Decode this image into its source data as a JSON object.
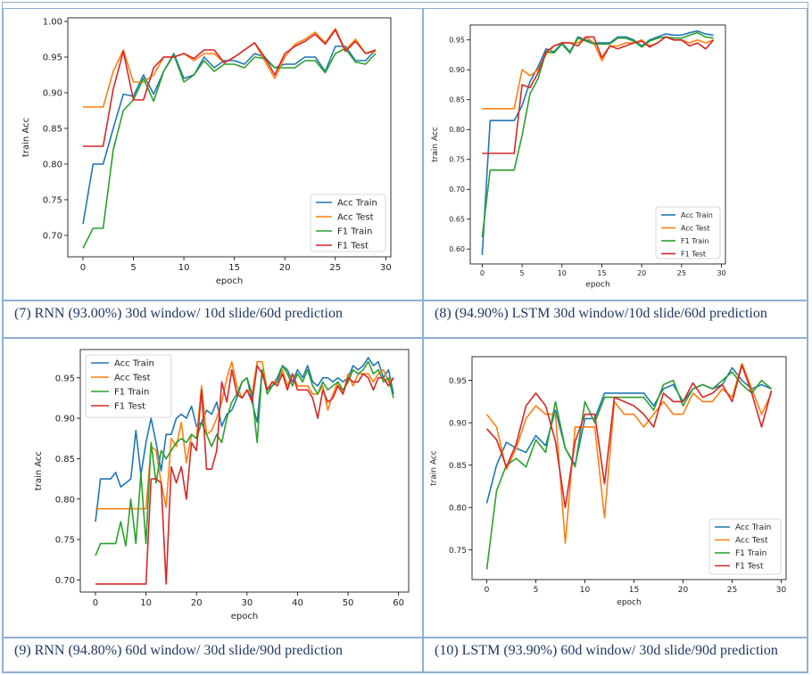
{
  "captions": [
    "(7) RNN (93.00%) 30d window/ 10d slide/60d prediction",
    "(8) (94.90%) LSTM 30d window/10d slide/60d prediction",
    "(9) RNN (94.80%) 60d window/ 30d slide/90d prediction",
    "(10) LSTM (93.90%) 60d window/ 30d slide/90d prediction"
  ],
  "colors": {
    "Acc Train": "#1f77b4",
    "Acc Test": "#ff7f0e",
    "F1 Train": "#2ca02c",
    "F1 Test": "#d62728"
  },
  "chart_data": [
    {
      "type": "line",
      "xlabel": "epoch",
      "ylabel": "train Acc",
      "xlim": [
        -1.5,
        30.5
      ],
      "ylim": [
        0.67,
        1.005
      ],
      "xticks": [
        0,
        5,
        10,
        15,
        20,
        25,
        30
      ],
      "yticks": [
        0.7,
        0.75,
        0.8,
        0.85,
        0.9,
        0.95,
        1.0
      ],
      "ytick_labels": [
        "0.70",
        "0.75",
        "0.80",
        "0.85",
        "0.90",
        "0.95",
        "1.00"
      ],
      "legend": "lower-right",
      "x": [
        0,
        1,
        2,
        3,
        4,
        5,
        6,
        7,
        8,
        9,
        10,
        11,
        12,
        13,
        14,
        15,
        16,
        17,
        18,
        19,
        20,
        21,
        22,
        23,
        24,
        25,
        26,
        27,
        28,
        29
      ],
      "series": [
        {
          "name": "Acc Train",
          "values": [
            0.716,
            0.8,
            0.8,
            0.85,
            0.898,
            0.895,
            0.925,
            0.898,
            0.93,
            0.955,
            0.92,
            0.925,
            0.95,
            0.935,
            0.945,
            0.945,
            0.94,
            0.955,
            0.95,
            0.935,
            0.94,
            0.94,
            0.95,
            0.95,
            0.93,
            0.965,
            0.965,
            0.945,
            0.945,
            0.96
          ]
        },
        {
          "name": "Acc Test",
          "values": [
            0.88,
            0.88,
            0.88,
            0.93,
            0.96,
            0.915,
            0.915,
            0.925,
            0.95,
            0.95,
            0.955,
            0.945,
            0.955,
            0.955,
            0.942,
            0.95,
            0.96,
            0.97,
            0.945,
            0.92,
            0.95,
            0.968,
            0.975,
            0.985,
            0.97,
            0.99,
            0.96,
            0.975,
            0.955,
            0.958
          ]
        },
        {
          "name": "F1 Train",
          "values": [
            0.682,
            0.71,
            0.71,
            0.82,
            0.875,
            0.89,
            0.92,
            0.888,
            0.93,
            0.953,
            0.915,
            0.925,
            0.945,
            0.93,
            0.94,
            0.94,
            0.935,
            0.95,
            0.948,
            0.935,
            0.935,
            0.935,
            0.945,
            0.945,
            0.928,
            0.955,
            0.962,
            0.943,
            0.94,
            0.955
          ]
        },
        {
          "name": "F1 Test",
          "values": [
            0.825,
            0.825,
            0.825,
            0.905,
            0.958,
            0.89,
            0.89,
            0.935,
            0.95,
            0.95,
            0.955,
            0.948,
            0.96,
            0.96,
            0.942,
            0.95,
            0.96,
            0.97,
            0.95,
            0.925,
            0.955,
            0.965,
            0.972,
            0.982,
            0.968,
            0.988,
            0.958,
            0.972,
            0.955,
            0.96
          ]
        }
      ]
    },
    {
      "type": "line",
      "xlabel": "epoch",
      "ylabel": "train Acc",
      "xlim": [
        -1.5,
        30.5
      ],
      "ylim": [
        0.575,
        0.975
      ],
      "xticks": [
        0,
        5,
        10,
        15,
        20,
        25,
        30
      ],
      "yticks": [
        0.6,
        0.65,
        0.7,
        0.75,
        0.8,
        0.85,
        0.9,
        0.95
      ],
      "ytick_labels": [
        "0.60",
        "0.65",
        "0.70",
        "0.75",
        "0.80",
        "0.85",
        "0.90",
        "0.95"
      ],
      "legend": "lower-right",
      "x": [
        0,
        1,
        2,
        3,
        4,
        5,
        6,
        7,
        8,
        9,
        10,
        11,
        12,
        13,
        14,
        15,
        16,
        17,
        18,
        19,
        20,
        21,
        22,
        23,
        24,
        25,
        26,
        27,
        28,
        29
      ],
      "series": [
        {
          "name": "Acc Train",
          "values": [
            0.59,
            0.815,
            0.815,
            0.815,
            0.815,
            0.84,
            0.88,
            0.905,
            0.935,
            0.93,
            0.945,
            0.93,
            0.955,
            0.95,
            0.945,
            0.945,
            0.945,
            0.955,
            0.955,
            0.95,
            0.94,
            0.95,
            0.955,
            0.96,
            0.958,
            0.958,
            0.962,
            0.965,
            0.96,
            0.958
          ]
        },
        {
          "name": "Acc Test",
          "values": [
            0.835,
            0.835,
            0.835,
            0.835,
            0.835,
            0.9,
            0.89,
            0.9,
            0.925,
            0.94,
            0.945,
            0.945,
            0.945,
            0.955,
            0.945,
            0.915,
            0.94,
            0.94,
            0.945,
            0.945,
            0.95,
            0.94,
            0.945,
            0.955,
            0.95,
            0.95,
            0.945,
            0.95,
            0.945,
            0.95
          ]
        },
        {
          "name": "F1 Train",
          "values": [
            0.62,
            0.732,
            0.732,
            0.732,
            0.732,
            0.79,
            0.86,
            0.885,
            0.93,
            0.928,
            0.943,
            0.928,
            0.953,
            0.948,
            0.943,
            0.943,
            0.943,
            0.953,
            0.953,
            0.948,
            0.938,
            0.948,
            0.953,
            0.955,
            0.953,
            0.953,
            0.958,
            0.962,
            0.955,
            0.953
          ]
        },
        {
          "name": "F1 Test",
          "values": [
            0.76,
            0.76,
            0.76,
            0.76,
            0.76,
            0.875,
            0.87,
            0.895,
            0.93,
            0.94,
            0.945,
            0.945,
            0.94,
            0.955,
            0.955,
            0.92,
            0.94,
            0.935,
            0.94,
            0.945,
            0.948,
            0.938,
            0.945,
            0.955,
            0.95,
            0.95,
            0.94,
            0.945,
            0.935,
            0.95
          ]
        }
      ]
    },
    {
      "type": "line",
      "xlabel": "epoch",
      "ylabel": "train Acc",
      "xlim": [
        -3,
        62
      ],
      "ylim": [
        0.685,
        0.985
      ],
      "xticks": [
        0,
        10,
        20,
        30,
        40,
        50,
        60
      ],
      "yticks": [
        0.7,
        0.75,
        0.8,
        0.85,
        0.9,
        0.95
      ],
      "ytick_labels": [
        "0.70",
        "0.75",
        "0.80",
        "0.85",
        "0.90",
        "0.95"
      ],
      "legend": "upper-left",
      "x": [
        0,
        1,
        2,
        3,
        4,
        5,
        6,
        7,
        8,
        9,
        10,
        11,
        12,
        13,
        14,
        15,
        16,
        17,
        18,
        19,
        20,
        21,
        22,
        23,
        24,
        25,
        26,
        27,
        28,
        29,
        30,
        31,
        32,
        33,
        34,
        35,
        36,
        37,
        38,
        39,
        40,
        41,
        42,
        43,
        44,
        45,
        46,
        47,
        48,
        49,
        50,
        51,
        52,
        53,
        54,
        55,
        56,
        57,
        58,
        59
      ],
      "series": [
        {
          "name": "Acc Train",
          "values": [
            0.772,
            0.825,
            0.825,
            0.825,
            0.833,
            0.815,
            0.82,
            0.825,
            0.885,
            0.83,
            0.87,
            0.9,
            0.87,
            0.835,
            0.88,
            0.88,
            0.9,
            0.905,
            0.9,
            0.915,
            0.89,
            0.895,
            0.91,
            0.905,
            0.92,
            0.89,
            0.905,
            0.91,
            0.925,
            0.945,
            0.95,
            0.92,
            0.895,
            0.96,
            0.935,
            0.94,
            0.95,
            0.965,
            0.96,
            0.945,
            0.96,
            0.95,
            0.965,
            0.945,
            0.94,
            0.95,
            0.95,
            0.945,
            0.95,
            0.945,
            0.95,
            0.965,
            0.96,
            0.965,
            0.975,
            0.965,
            0.97,
            0.95,
            0.96,
            0.93
          ]
        },
        {
          "name": "Acc Test",
          "values": [
            0.788,
            0.788,
            0.788,
            0.788,
            0.788,
            0.788,
            0.788,
            0.788,
            0.788,
            0.788,
            0.788,
            0.865,
            0.86,
            0.82,
            0.79,
            0.875,
            0.865,
            0.895,
            0.845,
            0.88,
            0.875,
            0.94,
            0.88,
            0.885,
            0.9,
            0.92,
            0.95,
            0.97,
            0.94,
            0.925,
            0.935,
            0.93,
            0.97,
            0.97,
            0.935,
            0.945,
            0.945,
            0.96,
            0.94,
            0.955,
            0.94,
            0.94,
            0.94,
            0.93,
            0.93,
            0.94,
            0.91,
            0.93,
            0.945,
            0.93,
            0.955,
            0.94,
            0.955,
            0.955,
            0.955,
            0.945,
            0.955,
            0.96,
            0.945,
            0.95
          ]
        },
        {
          "name": "F1 Train",
          "values": [
            0.73,
            0.745,
            0.745,
            0.745,
            0.745,
            0.772,
            0.742,
            0.8,
            0.745,
            0.832,
            0.745,
            0.87,
            0.82,
            0.86,
            0.85,
            0.86,
            0.87,
            0.875,
            0.87,
            0.88,
            0.875,
            0.895,
            0.88,
            0.865,
            0.88,
            0.87,
            0.9,
            0.92,
            0.93,
            0.945,
            0.95,
            0.93,
            0.87,
            0.96,
            0.93,
            0.94,
            0.945,
            0.965,
            0.955,
            0.94,
            0.955,
            0.945,
            0.96,
            0.94,
            0.93,
            0.945,
            0.935,
            0.94,
            0.945,
            0.935,
            0.945,
            0.96,
            0.955,
            0.96,
            0.97,
            0.955,
            0.96,
            0.945,
            0.95,
            0.925
          ]
        },
        {
          "name": "F1 Test",
          "values": [
            0.695,
            0.695,
            0.695,
            0.695,
            0.695,
            0.695,
            0.695,
            0.695,
            0.695,
            0.695,
            0.695,
            0.825,
            0.825,
            0.82,
            0.695,
            0.84,
            0.82,
            0.84,
            0.8,
            0.87,
            0.86,
            0.935,
            0.837,
            0.837,
            0.86,
            0.945,
            0.92,
            0.96,
            0.93,
            0.925,
            0.935,
            0.92,
            0.965,
            0.955,
            0.935,
            0.945,
            0.94,
            0.955,
            0.935,
            0.955,
            0.935,
            0.935,
            0.935,
            0.925,
            0.9,
            0.935,
            0.92,
            0.925,
            0.94,
            0.93,
            0.95,
            0.945,
            0.945,
            0.955,
            0.95,
            0.935,
            0.95,
            0.95,
            0.94,
            0.95
          ]
        }
      ]
    },
    {
      "type": "line",
      "xlabel": "epoch",
      "ylabel": "train Acc",
      "xlim": [
        -1.5,
        30.5
      ],
      "ylim": [
        0.715,
        0.978
      ],
      "xticks": [
        0,
        5,
        10,
        15,
        20,
        25,
        30
      ],
      "yticks": [
        0.75,
        0.8,
        0.85,
        0.9,
        0.95
      ],
      "ytick_labels": [
        "0.75",
        "0.80",
        "0.85",
        "0.90",
        "0.95"
      ],
      "legend": "lower-right",
      "x": [
        0,
        1,
        2,
        3,
        4,
        5,
        6,
        7,
        8,
        9,
        10,
        11,
        12,
        13,
        14,
        15,
        16,
        17,
        18,
        19,
        20,
        21,
        22,
        23,
        24,
        25,
        26,
        27,
        28,
        29
      ],
      "series": [
        {
          "name": "Acc Train",
          "values": [
            0.805,
            0.85,
            0.877,
            0.87,
            0.865,
            0.885,
            0.873,
            0.915,
            0.87,
            0.85,
            0.905,
            0.905,
            0.935,
            0.935,
            0.935,
            0.935,
            0.935,
            0.92,
            0.94,
            0.945,
            0.925,
            0.94,
            0.945,
            0.94,
            0.945,
            0.965,
            0.95,
            0.94,
            0.945,
            0.94
          ]
        },
        {
          "name": "Acc Test",
          "values": [
            0.91,
            0.895,
            0.845,
            0.87,
            0.905,
            0.92,
            0.91,
            0.91,
            0.758,
            0.895,
            0.895,
            0.895,
            0.788,
            0.925,
            0.91,
            0.91,
            0.895,
            0.91,
            0.925,
            0.91,
            0.91,
            0.935,
            0.925,
            0.925,
            0.94,
            0.93,
            0.97,
            0.94,
            0.91,
            0.935
          ]
        },
        {
          "name": "F1 Train",
          "values": [
            0.727,
            0.82,
            0.85,
            0.858,
            0.848,
            0.88,
            0.865,
            0.925,
            0.87,
            0.848,
            0.925,
            0.9,
            0.93,
            0.93,
            0.93,
            0.93,
            0.93,
            0.915,
            0.945,
            0.95,
            0.92,
            0.94,
            0.945,
            0.94,
            0.95,
            0.96,
            0.945,
            0.935,
            0.95,
            0.94
          ]
        },
        {
          "name": "F1 Test",
          "values": [
            0.893,
            0.88,
            0.848,
            0.875,
            0.92,
            0.935,
            0.92,
            0.878,
            0.8,
            0.878,
            0.91,
            0.91,
            0.828,
            0.93,
            0.925,
            0.92,
            0.91,
            0.895,
            0.935,
            0.925,
            0.925,
            0.947,
            0.93,
            0.935,
            0.945,
            0.925,
            0.968,
            0.935,
            0.895,
            0.938
          ]
        }
      ]
    }
  ]
}
